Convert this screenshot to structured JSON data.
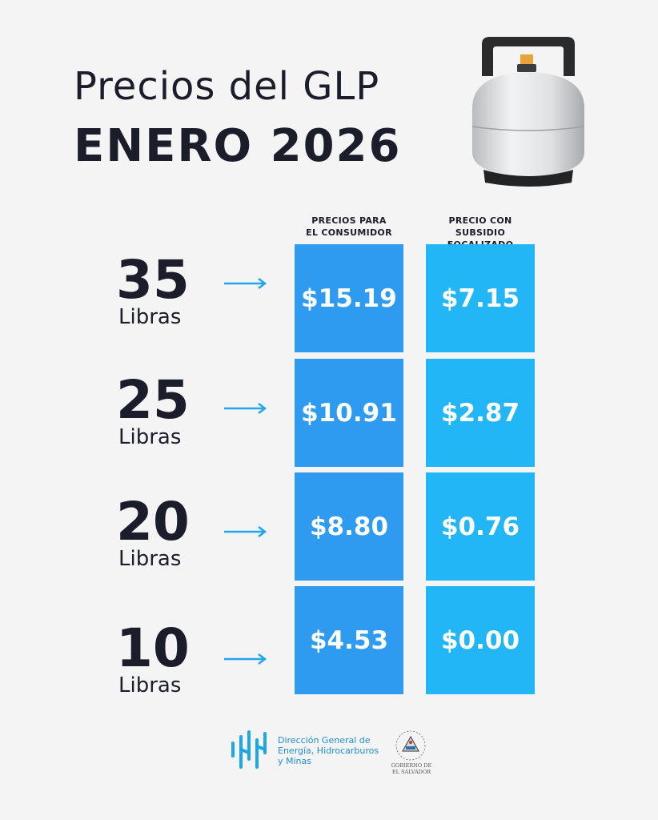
{
  "header": {
    "title_line1": "Precios del GLP",
    "title_line2": "ENERO 2026"
  },
  "columns": {
    "consumer_line1": "PRECIOS PARA",
    "consumer_line2": "EL CONSUMIDOR",
    "subsidy_line1": "PRECIO CON",
    "subsidy_line2": "SUBSIDIO FOCALIZADO"
  },
  "rows": [
    {
      "size": "35",
      "unit": "Libras",
      "consumer_price": "$15.19",
      "subsidy_price": "$7.15"
    },
    {
      "size": "25",
      "unit": "Libras",
      "consumer_price": "$10.91",
      "subsidy_price": "$2.87"
    },
    {
      "size": "20",
      "unit": "Libras",
      "consumer_price": "$8.80",
      "subsidy_price": "$0.76"
    },
    {
      "size": "10",
      "unit": "Libras",
      "consumer_price": "$4.53",
      "subsidy_price": "$0.00"
    }
  ],
  "footer": {
    "org_line1": "Dirección General de",
    "org_line2": "Energía, Hidrocarburos",
    "org_line3": "y Minas",
    "gov_line1": "GOBIERNO DE",
    "gov_line2": "EL SALVADOR"
  },
  "colors": {
    "background": "#f4f4f4",
    "consumer_cell": "#2e9af0",
    "subsidy_cell": "#22b6f6",
    "text_dark": "#1b1d2b",
    "accent": "#1e8fd6"
  },
  "icons": {
    "cylinder": "gas-cylinder-icon",
    "arrow": "arrow-right-icon",
    "logo": "dgehm-logo-icon",
    "seal": "el-salvador-seal-icon"
  }
}
